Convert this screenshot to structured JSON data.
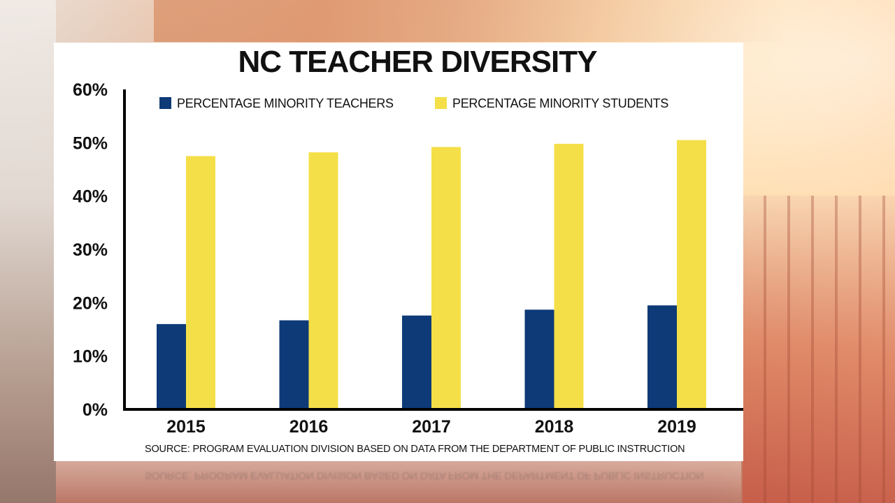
{
  "colors": {
    "teachers": "#0e3a78",
    "students": "#f4df48",
    "axis": "#000000",
    "text": "#111111"
  },
  "chart_data": {
    "type": "bar",
    "title": "NC TEACHER DIVERSITY",
    "categories": [
      "2015",
      "2016",
      "2017",
      "2018",
      "2019"
    ],
    "series": [
      {
        "name": "PERCENTAGE MINORITY TEACHERS",
        "values": [
          16,
          16.7,
          17.6,
          18.7,
          19.5
        ]
      },
      {
        "name": "PERCENTAGE MINORITY STUDENTS",
        "values": [
          47.5,
          48.2,
          49.2,
          49.8,
          50.5
        ]
      }
    ],
    "yticks": [
      "0%",
      "10%",
      "20%",
      "30%",
      "40%",
      "50%",
      "60%"
    ],
    "ylim": [
      0,
      60
    ],
    "legend": "top",
    "grid": false,
    "source": "SOURCE: PROGRAM EVALUATION DIVISION BASED ON DATA FROM THE DEPARTMENT OF PUBLIC INSTRUCTION"
  }
}
